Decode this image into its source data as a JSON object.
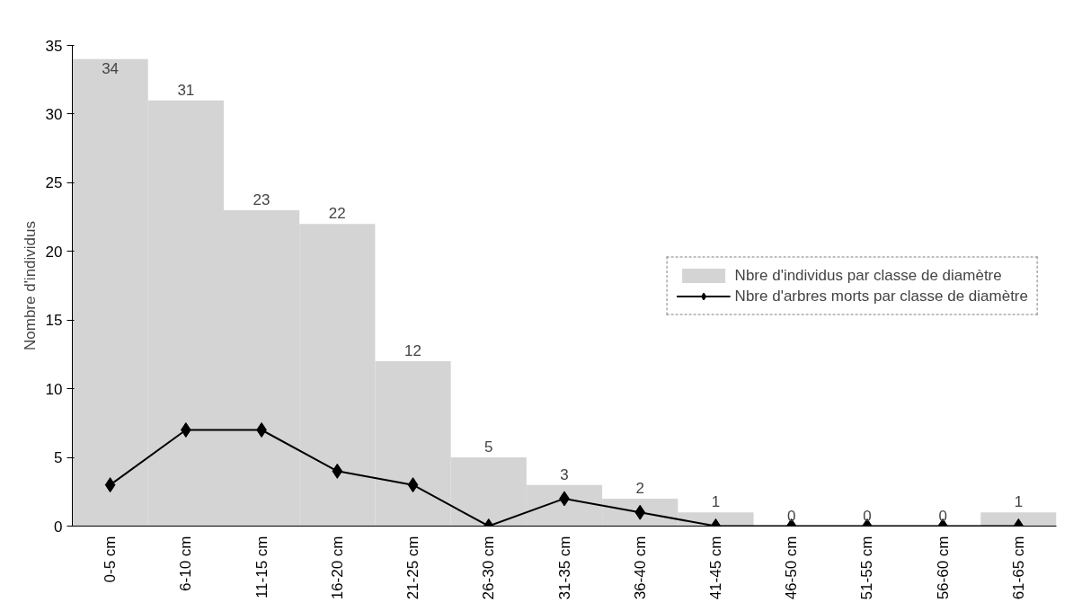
{
  "chart_data": {
    "type": "bar",
    "ylabel": "Nombre d'individus",
    "categories": [
      "0-5 cm",
      "6-10 cm",
      "11-15 cm",
      "16-20 cm",
      "21-25 cm",
      "26-30 cm",
      "31-35 cm",
      "36-40 cm",
      "41-45 cm",
      "46-50 cm",
      "51-55 cm",
      "56-60 cm",
      "61-65 cm"
    ],
    "series": [
      {
        "name": "Nbre d'individus par classe de diamètre",
        "color": "#d4d4d4",
        "values": [
          34,
          31,
          23,
          22,
          12,
          5,
          3,
          2,
          1,
          0,
          0,
          0,
          1
        ],
        "value_labels": [
          "34",
          "31",
          "23",
          "22",
          "12",
          "5",
          "3",
          "2",
          "1",
          "0",
          "0",
          "0",
          "1"
        ]
      },
      {
        "name": "Nbre d'arbres morts par classe de diamètre",
        "type": "line",
        "color": "#000000",
        "marker": "diamond",
        "values": [
          3,
          7,
          7,
          4,
          3,
          0,
          2,
          1,
          0,
          0,
          0,
          0,
          0
        ]
      }
    ],
    "ylim": [
      0,
      35
    ],
    "yticks": [
      0,
      5,
      10,
      15,
      20,
      25,
      30,
      35
    ],
    "grid": false,
    "legend": "right"
  }
}
